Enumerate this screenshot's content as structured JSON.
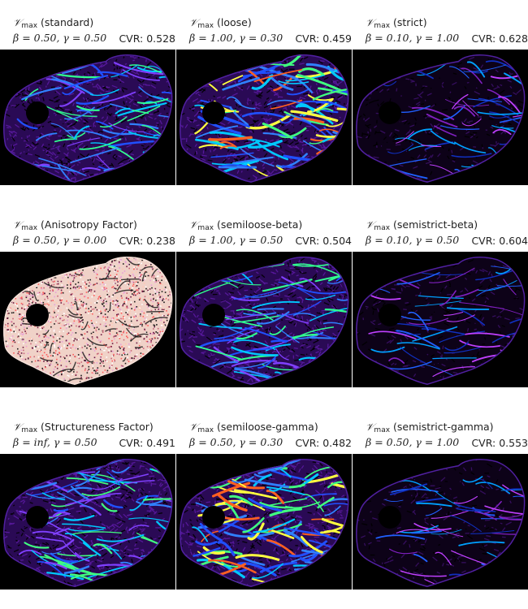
{
  "symbol": {
    "base": "𝒱",
    "sub": "max"
  },
  "panels": [
    {
      "title": "(standard)",
      "params": "β = 0.50, γ = 0.50",
      "cvr": "CVR: 0.528",
      "style": "standard"
    },
    {
      "title": "(loose)",
      "params": "β = 1.00, γ = 0.30",
      "cvr": "CVR: 0.459",
      "style": "loose"
    },
    {
      "title": "(strict)",
      "params": "β = 0.10, γ = 1.00",
      "cvr": "CVR: 0.628",
      "style": "strict"
    },
    {
      "title": "(Anisotropy Factor)",
      "params": "β = 0.50, γ = 0.00",
      "cvr": "CVR: 0.238",
      "style": "anisotropy"
    },
    {
      "title": "(semiloose-beta)",
      "params": "β = 1.00, γ = 0.50",
      "cvr": "CVR: 0.504",
      "style": "standard"
    },
    {
      "title": "(semistrict-beta)",
      "params": "β = 0.10, γ = 0.50",
      "cvr": "CVR: 0.604",
      "style": "strict"
    },
    {
      "title": "(Structureness Factor)",
      "params": "β = inf, γ = 0.50",
      "cvr": "CVR: 0.491",
      "style": "structureness"
    },
    {
      "title": "(semiloose-gamma)",
      "params": "β = 0.50, γ = 0.30",
      "cvr": "CVR: 0.482",
      "style": "loose"
    },
    {
      "title": "(semistrict-gamma)",
      "params": "β = 0.50, γ = 1.00",
      "cvr": "CVR: 0.553",
      "style": "strict"
    }
  ]
}
